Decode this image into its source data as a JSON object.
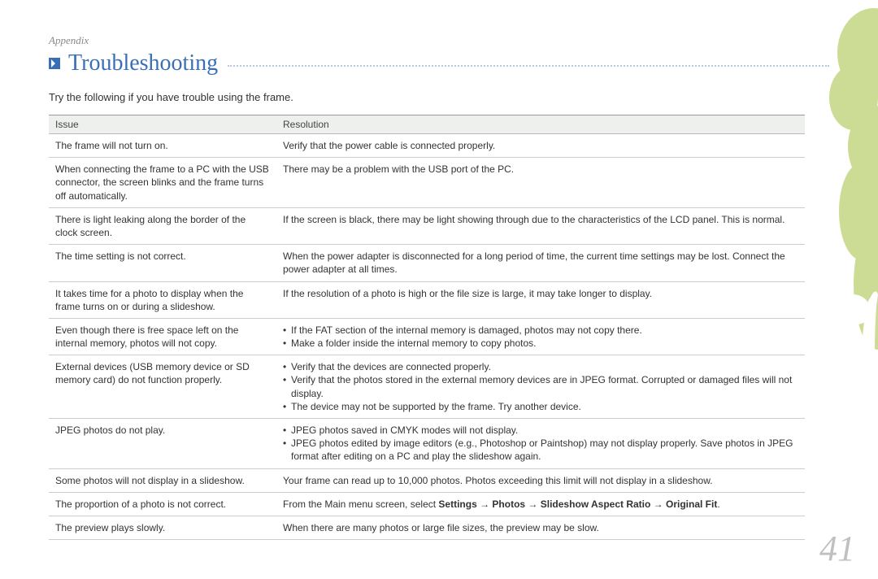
{
  "section_label": "Appendix",
  "title": "Troubleshooting",
  "intro": "Try the following if you have trouble using the frame.",
  "page_number": "41",
  "headers": {
    "issue": "Issue",
    "resolution": "Resolution"
  },
  "rows": [
    {
      "issue": "The frame will not turn on.",
      "resolution_text": "Verify that the power cable is connected properly."
    },
    {
      "issue": "When connecting the frame to a PC with the USB connector, the screen blinks and the frame turns off automatically.",
      "resolution_text": "There may be a problem with the USB port of the PC."
    },
    {
      "issue": "There is light leaking along the border of the clock screen.",
      "resolution_text": "If the screen is black, there may be light showing through due to the characteristics of the LCD panel. This is normal."
    },
    {
      "issue": "The time setting is not correct.",
      "resolution_text": "When the power adapter is disconnected for a long period of time, the current time settings may be lost. Connect the power adapter at all times."
    },
    {
      "issue": "It takes time for a photo to display when the frame turns on or during a slideshow.",
      "resolution_text": "If the resolution of a photo is high or the file size is large, it may take longer to display."
    },
    {
      "issue": "Even though there is free space left on the internal memory, photos will not copy.",
      "resolution_list": [
        "If the FAT section of the internal memory is damaged, photos may not copy there.",
        "Make a folder inside the internal memory to copy photos."
      ]
    },
    {
      "issue": "External devices (USB memory device or SD memory card) do not function properly.",
      "resolution_list": [
        "Verify that the devices are connected properly.",
        "Verify that the photos stored in the external memory devices are in JPEG format. Corrupted or damaged files will not display.",
        "The device may not be supported by the frame. Try another device."
      ]
    },
    {
      "issue": "JPEG photos do not play.",
      "resolution_list": [
        "JPEG photos saved in CMYK modes will not display.",
        "JPEG photos edited by image editors (e.g., Photoshop or Paintshop) may not display properly. Save photos in JPEG format after editing on a PC and play the slideshow again."
      ]
    },
    {
      "issue": "Some photos will not display in a slideshow.",
      "resolution_text": "Your frame can read up to 10,000 photos. Photos exceeding this limit will not display in a slideshow."
    },
    {
      "issue": "The proportion of a photo is not correct.",
      "resolution_rich": {
        "prefix": "From the Main menu screen, select ",
        "bold": "Settings → Photos → Slideshow Aspect Ratio → Original Fit",
        "suffix": "."
      }
    },
    {
      "issue": "The preview plays slowly.",
      "resolution_text": "When there are many photos or large file sizes, the preview may be slow."
    }
  ],
  "colors": {
    "accent": "#3a6fb7",
    "header_bg": "#eef0ed",
    "border": "#cccccc",
    "page_num": "#c0c0c0",
    "deco_green": "#c7d98a",
    "deco_white": "#ffffff"
  }
}
